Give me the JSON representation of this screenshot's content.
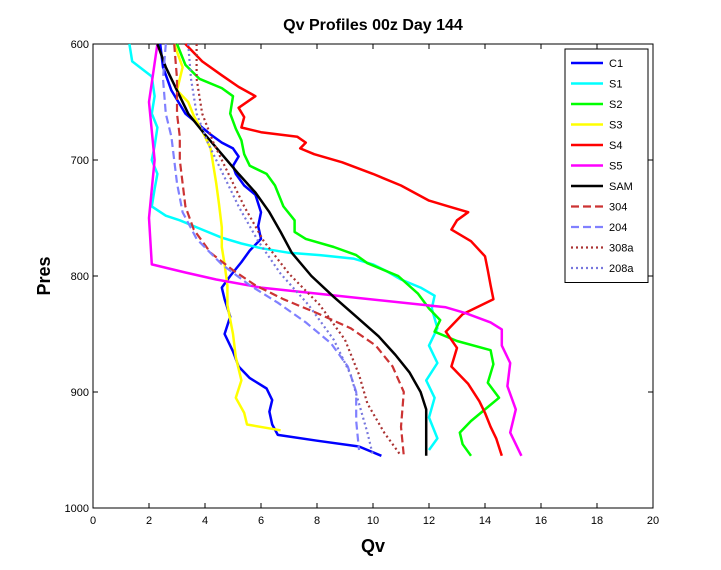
{
  "chart_data": {
    "type": "line",
    "title": "Qv Profiles 00z Day 144",
    "xlabel": "Qv",
    "ylabel": "Pres",
    "xlim": [
      0,
      20
    ],
    "ylim": [
      600,
      1000
    ],
    "y_reversed": true,
    "x_ticks": [
      0,
      2,
      4,
      6,
      8,
      10,
      12,
      14,
      16,
      18,
      20
    ],
    "y_ticks": [
      600,
      700,
      800,
      900,
      1000
    ],
    "grid": false,
    "legend_position": "top-right",
    "series": [
      {
        "name": "C1",
        "color": "#0000ff",
        "dash": "solid",
        "points": [
          [
            2.4,
            600
          ],
          [
            2.5,
            620
          ],
          [
            2.8,
            640
          ],
          [
            3.3,
            660
          ],
          [
            3.8,
            670
          ],
          [
            4.2,
            678
          ],
          [
            4.6,
            685
          ],
          [
            5.0,
            690
          ],
          [
            5.2,
            697
          ],
          [
            5.0,
            705
          ],
          [
            5.1,
            712
          ],
          [
            5.4,
            722
          ],
          [
            5.8,
            730
          ],
          [
            6.0,
            745
          ],
          [
            5.9,
            757
          ],
          [
            6.0,
            768
          ],
          [
            5.6,
            778
          ],
          [
            5.3,
            788
          ],
          [
            4.9,
            800
          ],
          [
            4.6,
            810
          ],
          [
            4.7,
            820
          ],
          [
            4.9,
            835
          ],
          [
            4.7,
            850
          ],
          [
            5.0,
            865
          ],
          [
            5.2,
            878
          ],
          [
            5.6,
            888
          ],
          [
            6.2,
            897
          ],
          [
            6.4,
            907
          ],
          [
            6.3,
            917
          ],
          [
            6.4,
            928
          ],
          [
            6.6,
            937
          ],
          [
            8.0,
            942
          ],
          [
            9.5,
            947
          ],
          [
            10.3,
            955
          ]
        ]
      },
      {
        "name": "S1",
        "color": "#00ffff",
        "dash": "solid",
        "points": [
          [
            1.3,
            600
          ],
          [
            1.4,
            615
          ],
          [
            2.1,
            628
          ],
          [
            2.2,
            645
          ],
          [
            2.1,
            660
          ],
          [
            2.3,
            672
          ],
          [
            2.2,
            688
          ],
          [
            2.1,
            700
          ],
          [
            2.3,
            712
          ],
          [
            2.2,
            725
          ],
          [
            2.1,
            740
          ],
          [
            2.6,
            748
          ],
          [
            3.1,
            752
          ],
          [
            3.9,
            760
          ],
          [
            4.6,
            767
          ],
          [
            5.3,
            772
          ],
          [
            6.0,
            776
          ],
          [
            7.0,
            780
          ],
          [
            8.1,
            782
          ],
          [
            9.3,
            785
          ],
          [
            10.0,
            790
          ],
          [
            10.5,
            796
          ],
          [
            11.0,
            803
          ],
          [
            11.7,
            810
          ],
          [
            12.2,
            817
          ],
          [
            12.1,
            828
          ],
          [
            12.3,
            845
          ],
          [
            12.0,
            860
          ],
          [
            12.3,
            875
          ],
          [
            11.9,
            890
          ],
          [
            12.2,
            905
          ],
          [
            12.0,
            922
          ],
          [
            12.3,
            940
          ],
          [
            12.0,
            950
          ]
        ]
      },
      {
        "name": "S2",
        "color": "#00ff00",
        "dash": "solid",
        "points": [
          [
            3.0,
            600
          ],
          [
            3.3,
            618
          ],
          [
            3.8,
            630
          ],
          [
            4.6,
            638
          ],
          [
            5.0,
            645
          ],
          [
            4.9,
            660
          ],
          [
            5.1,
            673
          ],
          [
            5.3,
            683
          ],
          [
            5.4,
            695
          ],
          [
            5.6,
            705
          ],
          [
            6.2,
            712
          ],
          [
            6.5,
            722
          ],
          [
            6.8,
            740
          ],
          [
            7.2,
            752
          ],
          [
            7.2,
            762
          ],
          [
            7.6,
            768
          ],
          [
            8.6,
            775
          ],
          [
            9.4,
            782
          ],
          [
            9.8,
            789
          ],
          [
            10.9,
            800
          ],
          [
            11.6,
            815
          ],
          [
            12.0,
            828
          ],
          [
            12.4,
            838
          ],
          [
            12.2,
            848
          ],
          [
            13.0,
            856
          ],
          [
            14.2,
            864
          ],
          [
            14.3,
            876
          ],
          [
            14.1,
            892
          ],
          [
            14.5,
            905
          ],
          [
            14.0,
            915
          ],
          [
            13.5,
            925
          ],
          [
            13.1,
            935
          ],
          [
            13.2,
            945
          ],
          [
            13.5,
            955
          ]
        ]
      },
      {
        "name": "S3",
        "color": "#ffff00",
        "dash": "solid",
        "points": [
          [
            2.9,
            600
          ],
          [
            3.2,
            620
          ],
          [
            3.0,
            640
          ],
          [
            3.4,
            650
          ],
          [
            3.6,
            662
          ],
          [
            3.9,
            675
          ],
          [
            4.2,
            690
          ],
          [
            4.3,
            705
          ],
          [
            4.4,
            720
          ],
          [
            4.5,
            738
          ],
          [
            4.6,
            758
          ],
          [
            4.6,
            775
          ],
          [
            4.7,
            790
          ],
          [
            4.8,
            808
          ],
          [
            4.8,
            825
          ],
          [
            5.0,
            850
          ],
          [
            5.1,
            870
          ],
          [
            5.3,
            890
          ],
          [
            5.1,
            905
          ],
          [
            5.4,
            918
          ],
          [
            5.5,
            928
          ],
          [
            6.7,
            933
          ]
        ]
      },
      {
        "name": "S4",
        "color": "#ff0000",
        "dash": "solid",
        "points": [
          [
            3.3,
            600
          ],
          [
            3.9,
            615
          ],
          [
            4.6,
            627
          ],
          [
            5.2,
            637
          ],
          [
            5.8,
            645
          ],
          [
            5.2,
            655
          ],
          [
            5.4,
            663
          ],
          [
            5.3,
            672
          ],
          [
            6.0,
            676
          ],
          [
            7.3,
            680
          ],
          [
            7.6,
            685
          ],
          [
            7.4,
            690
          ],
          [
            7.9,
            695
          ],
          [
            8.9,
            702
          ],
          [
            10.0,
            712
          ],
          [
            11.0,
            722
          ],
          [
            12.0,
            735
          ],
          [
            12.7,
            740
          ],
          [
            13.4,
            745
          ],
          [
            13.0,
            752
          ],
          [
            12.8,
            760
          ],
          [
            13.5,
            770
          ],
          [
            14.0,
            783
          ],
          [
            14.1,
            795
          ],
          [
            14.2,
            808
          ],
          [
            14.3,
            820
          ],
          [
            13.2,
            833
          ],
          [
            12.6,
            848
          ],
          [
            13.0,
            862
          ],
          [
            12.8,
            878
          ],
          [
            13.4,
            893
          ],
          [
            13.8,
            908
          ],
          [
            14.0,
            918
          ],
          [
            14.2,
            930
          ],
          [
            14.4,
            940
          ],
          [
            14.6,
            955
          ]
        ]
      },
      {
        "name": "S5",
        "color": "#ff00ff",
        "dash": "solid",
        "points": [
          [
            2.3,
            600
          ],
          [
            2.0,
            650
          ],
          [
            2.2,
            700
          ],
          [
            2.0,
            750
          ],
          [
            2.1,
            790
          ],
          [
            3.3,
            797
          ],
          [
            4.4,
            803
          ],
          [
            6.0,
            810
          ],
          [
            9.1,
            818
          ],
          [
            12.6,
            827
          ],
          [
            13.3,
            832
          ],
          [
            14.2,
            840
          ],
          [
            14.6,
            846
          ],
          [
            14.6,
            860
          ],
          [
            14.9,
            875
          ],
          [
            14.8,
            895
          ],
          [
            15.1,
            915
          ],
          [
            14.9,
            935
          ],
          [
            15.3,
            955
          ]
        ]
      },
      {
        "name": "SAM",
        "color": "#000000",
        "dash": "solid",
        "points": [
          [
            2.3,
            600
          ],
          [
            2.6,
            620
          ],
          [
            3.0,
            640
          ],
          [
            3.4,
            660
          ],
          [
            4.0,
            678
          ],
          [
            4.6,
            695
          ],
          [
            5.2,
            712
          ],
          [
            5.8,
            728
          ],
          [
            6.3,
            745
          ],
          [
            6.7,
            762
          ],
          [
            7.1,
            780
          ],
          [
            7.8,
            800
          ],
          [
            8.6,
            818
          ],
          [
            9.4,
            835
          ],
          [
            10.2,
            852
          ],
          [
            10.8,
            868
          ],
          [
            11.3,
            883
          ],
          [
            11.7,
            900
          ],
          [
            11.9,
            915
          ],
          [
            11.9,
            955
          ]
        ]
      },
      {
        "name": "304",
        "color": "#cc3333",
        "dash": "8 4",
        "points": [
          [
            2.9,
            600
          ],
          [
            3.0,
            630
          ],
          [
            3.0,
            660
          ],
          [
            3.1,
            680
          ],
          [
            3.1,
            700
          ],
          [
            3.2,
            720
          ],
          [
            3.3,
            740
          ],
          [
            3.6,
            760
          ],
          [
            4.2,
            780
          ],
          [
            5.0,
            795
          ],
          [
            5.8,
            808
          ],
          [
            6.8,
            820
          ],
          [
            8.0,
            832
          ],
          [
            9.2,
            845
          ],
          [
            10.1,
            860
          ],
          [
            10.7,
            878
          ],
          [
            11.1,
            900
          ],
          [
            11.0,
            930
          ],
          [
            11.1,
            955
          ]
        ]
      },
      {
        "name": "204",
        "color": "#8080ff",
        "dash": "8 4",
        "points": [
          [
            2.6,
            600
          ],
          [
            2.5,
            630
          ],
          [
            2.6,
            660
          ],
          [
            2.8,
            680
          ],
          [
            2.9,
            700
          ],
          [
            3.0,
            720
          ],
          [
            3.2,
            745
          ],
          [
            3.7,
            768
          ],
          [
            4.6,
            790
          ],
          [
            5.6,
            808
          ],
          [
            6.6,
            823
          ],
          [
            7.6,
            840
          ],
          [
            8.5,
            858
          ],
          [
            9.1,
            878
          ],
          [
            9.4,
            900
          ],
          [
            9.4,
            925
          ],
          [
            9.5,
            950
          ]
        ]
      },
      {
        "name": "308a",
        "color": "#aa3333",
        "dash": "2 3",
        "points": [
          [
            3.7,
            600
          ],
          [
            3.7,
            630
          ],
          [
            3.9,
            660
          ],
          [
            4.3,
            685
          ],
          [
            4.8,
            710
          ],
          [
            5.4,
            740
          ],
          [
            6.1,
            770
          ],
          [
            7.0,
            798
          ],
          [
            8.1,
            825
          ],
          [
            9.0,
            855
          ],
          [
            9.5,
            885
          ],
          [
            9.8,
            910
          ],
          [
            10.4,
            935
          ],
          [
            11.0,
            955
          ]
        ]
      },
      {
        "name": "208a",
        "color": "#7777dd",
        "dash": "2 3",
        "points": [
          [
            3.4,
            600
          ],
          [
            3.5,
            630
          ],
          [
            3.7,
            660
          ],
          [
            4.1,
            685
          ],
          [
            4.6,
            710
          ],
          [
            5.2,
            740
          ],
          [
            5.9,
            770
          ],
          [
            6.7,
            798
          ],
          [
            7.7,
            825
          ],
          [
            8.6,
            855
          ],
          [
            9.2,
            885
          ],
          [
            9.5,
            910
          ],
          [
            9.8,
            935
          ],
          [
            10.0,
            955
          ]
        ]
      }
    ]
  }
}
